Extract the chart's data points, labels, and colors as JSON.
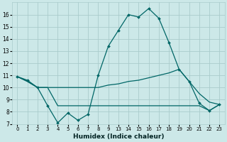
{
  "xlabel": "Humidex (Indice chaleur)",
  "background_color": "#cce8e8",
  "grid_color": "#aacccc",
  "line_color": "#006666",
  "ylim": [
    7,
    17
  ],
  "yticks": [
    7,
    8,
    9,
    10,
    11,
    12,
    13,
    14,
    15,
    16
  ],
  "x_indices": [
    0,
    1,
    2,
    3,
    4,
    5,
    6,
    7,
    8,
    9,
    10,
    11,
    12,
    13,
    14,
    15,
    16,
    17,
    18,
    19,
    20
  ],
  "x_labels": [
    "0",
    "1",
    "2",
    "3",
    "4",
    "5",
    "6",
    "7",
    "8",
    "9",
    "13",
    "14",
    "15",
    "16",
    "17",
    "18",
    "19",
    "20",
    "21",
    "22",
    "23"
  ],
  "line1_y": [
    10.9,
    10.6,
    10.0,
    8.5,
    7.1,
    7.9,
    7.3,
    7.8,
    11.0,
    13.4,
    14.7,
    16.0,
    15.8,
    16.5,
    15.7,
    13.7,
    11.5,
    10.5,
    8.7,
    8.1,
    8.6
  ],
  "line2_y": [
    10.9,
    10.5,
    10.0,
    10.0,
    8.5,
    8.5,
    8.5,
    8.5,
    8.5,
    8.5,
    8.5,
    8.5,
    8.5,
    8.5,
    8.5,
    8.5,
    8.5,
    8.5,
    8.5,
    8.1,
    8.6
  ],
  "line3_y": [
    10.9,
    10.5,
    10.0,
    10.0,
    10.0,
    10.0,
    10.0,
    10.0,
    10.0,
    10.2,
    10.3,
    10.5,
    10.6,
    10.8,
    11.0,
    11.2,
    11.5,
    10.5,
    9.5,
    8.8,
    8.6
  ]
}
